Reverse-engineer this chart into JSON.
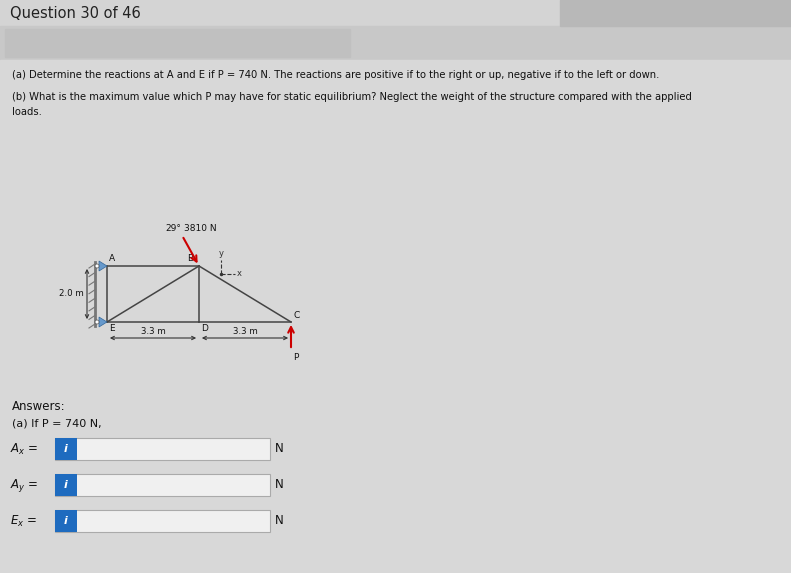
{
  "title": "Question 30 of 46",
  "bg_top_color": "#d4d4d4",
  "bg_body_color": "#d8d8d8",
  "bg_band_color": "#c8c8c8",
  "header_rect_color": "#c0c0c0",
  "top_right_rect_color": "#b8b8b8",
  "problem_text_a": "(a) Determine the reactions at A and E if P = 740 N. The reactions are positive if to the right or up, negative if to the left or down.",
  "problem_text_b": "(b) What is the maximum value which P may have for static equilibrium? Neglect the weight of the structure compared with the applied loads.",
  "answer_label": "Answers:",
  "answer_sub": "(a) If P = 740 N,",
  "input_labels": [
    "A_x =",
    "A_y =",
    "E_x ="
  ],
  "input_units": [
    "N",
    "N",
    "N"
  ],
  "blue_btn_color": "#1e6bbf",
  "force_label": "3810 N",
  "angle_label": "29°",
  "dim_h": "2.0 m",
  "dim_w1": "3.3 m",
  "dim_w2": "3.3 m",
  "P_label": "P",
  "wall_color": "#777777",
  "roller_color": "#6699cc",
  "line_color": "#444444",
  "dim_line_color": "#333333",
  "arrow_color_red": "#cc0000",
  "axis_color": "#333333"
}
